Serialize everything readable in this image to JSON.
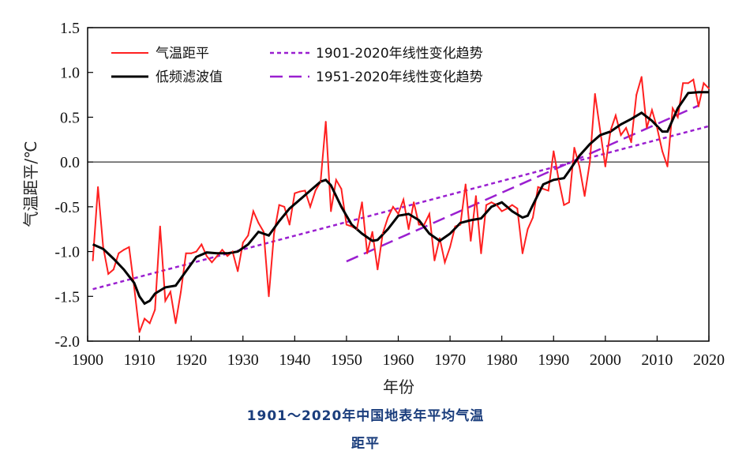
{
  "chart_data": {
    "type": "line",
    "xlabel": "年份",
    "ylabel": "气温距平/℃",
    "xlim": [
      1900,
      2020
    ],
    "ylim": [
      -2.0,
      1.5
    ],
    "xticks": [
      "1900",
      "1910",
      "1920",
      "1930",
      "1940",
      "1950",
      "1960",
      "1970",
      "1980",
      "1990",
      "2000",
      "2010",
      "2020"
    ],
    "yticks": [
      "1.5",
      "1.0",
      "0.5",
      "0.0",
      "-0.5",
      "-1.0",
      "-1.5",
      "-2.0"
    ],
    "legend": {
      "anomaly": "气温距平",
      "smooth": "低频滤波值",
      "trend1901": "1901-2020年线性变化趋势",
      "trend1951": "1951-2020年线性变化趋势"
    },
    "colors": {
      "anomaly": "#ff2020",
      "smooth": "#000000",
      "trend": "#9a1fd0"
    },
    "series": [
      {
        "name": "气温距平",
        "x": [
          1901,
          1902,
          1903,
          1904,
          1905,
          1906,
          1907,
          1908,
          1909,
          1910,
          1911,
          1912,
          1913,
          1914,
          1915,
          1916,
          1917,
          1918,
          1919,
          1920,
          1921,
          1922,
          1923,
          1924,
          1925,
          1926,
          1927,
          1928,
          1929,
          1930,
          1931,
          1932,
          1933,
          1934,
          1935,
          1936,
          1937,
          1938,
          1939,
          1940,
          1941,
          1942,
          1943,
          1944,
          1945,
          1946,
          1947,
          1948,
          1949,
          1950,
          1951,
          1952,
          1953,
          1954,
          1955,
          1956,
          1957,
          1958,
          1959,
          1960,
          1961,
          1962,
          1963,
          1964,
          1965,
          1966,
          1967,
          1968,
          1969,
          1970,
          1971,
          1972,
          1973,
          1974,
          1975,
          1976,
          1977,
          1978,
          1979,
          1980,
          1981,
          1982,
          1983,
          1984,
          1985,
          1986,
          1987,
          1988,
          1989,
          1990,
          1991,
          1992,
          1993,
          1994,
          1995,
          1996,
          1997,
          1998,
          1999,
          2000,
          2001,
          2002,
          2003,
          2004,
          2005,
          2006,
          2007,
          2008,
          2009,
          2010,
          2011,
          2012,
          2013,
          2014,
          2015,
          2016,
          2017,
          2018,
          2019,
          2020
        ],
        "values": [
          -1.1,
          -0.28,
          -0.95,
          -1.25,
          -1.2,
          -1.02,
          -0.98,
          -0.95,
          -1.4,
          -1.9,
          -1.75,
          -1.8,
          -1.65,
          -0.72,
          -1.55,
          -1.45,
          -1.8,
          -1.45,
          -1.02,
          -1.02,
          -1.0,
          -0.92,
          -1.05,
          -1.12,
          -1.05,
          -0.98,
          -1.05,
          -1.0,
          -1.22,
          -0.9,
          -0.82,
          -0.55,
          -0.68,
          -0.78,
          -1.5,
          -0.8,
          -0.48,
          -0.5,
          -0.7,
          -0.35,
          -0.33,
          -0.32,
          -0.5,
          -0.32,
          -0.22,
          0.45,
          -0.55,
          -0.2,
          -0.3,
          -0.7,
          -0.72,
          -0.75,
          -0.45,
          -1.02,
          -0.78,
          -1.2,
          -0.8,
          -0.62,
          -0.5,
          -0.58,
          -0.42,
          -0.75,
          -0.45,
          -0.7,
          -0.7,
          -0.58,
          -1.1,
          -0.85,
          -1.12,
          -0.95,
          -0.72,
          -0.7,
          -0.25,
          -0.88,
          -0.38,
          -1.02,
          -0.48,
          -0.45,
          -0.48,
          -0.55,
          -0.52,
          -0.48,
          -0.52,
          -1.02,
          -0.75,
          -0.62,
          -0.28,
          -0.3,
          -0.32,
          0.12,
          -0.2,
          -0.48,
          -0.45,
          0.16,
          -0.05,
          -0.38,
          0.0,
          0.76,
          0.35,
          -0.05,
          0.35,
          0.52,
          0.3,
          0.38,
          0.22,
          0.75,
          0.95,
          0.38,
          0.58,
          0.38,
          0.12,
          -0.05,
          0.6,
          0.5,
          0.88,
          0.88,
          0.92,
          0.62,
          0.88,
          0.82
        ]
      },
      {
        "name": "低频滤波值",
        "x": [
          1901,
          1903,
          1905,
          1907,
          1909,
          1910,
          1911,
          1912,
          1913,
          1915,
          1917,
          1919,
          1921,
          1923,
          1925,
          1927,
          1929,
          1931,
          1933,
          1935,
          1937,
          1939,
          1941,
          1943,
          1945,
          1946,
          1947,
          1949,
          1951,
          1953,
          1955,
          1956,
          1958,
          1960,
          1962,
          1964,
          1966,
          1968,
          1970,
          1972,
          1974,
          1976,
          1978,
          1980,
          1982,
          1984,
          1985,
          1986,
          1988,
          1990,
          1992,
          1993,
          1995,
          1997,
          1999,
          2001,
          2003,
          2005,
          2007,
          2009,
          2011,
          2012,
          2014,
          2016,
          2018,
          2020
        ],
        "values": [
          -0.92,
          -0.97,
          -1.08,
          -1.2,
          -1.35,
          -1.5,
          -1.58,
          -1.55,
          -1.47,
          -1.4,
          -1.38,
          -1.22,
          -1.06,
          -1.01,
          -1.02,
          -1.02,
          -1.0,
          -0.92,
          -0.78,
          -0.82,
          -0.66,
          -0.52,
          -0.42,
          -0.32,
          -0.22,
          -0.2,
          -0.26,
          -0.5,
          -0.7,
          -0.8,
          -0.88,
          -0.87,
          -0.75,
          -0.6,
          -0.58,
          -0.65,
          -0.8,
          -0.88,
          -0.8,
          -0.68,
          -0.65,
          -0.63,
          -0.5,
          -0.45,
          -0.55,
          -0.62,
          -0.6,
          -0.48,
          -0.25,
          -0.2,
          -0.18,
          -0.1,
          0.07,
          0.2,
          0.3,
          0.34,
          0.42,
          0.48,
          0.55,
          0.46,
          0.34,
          0.34,
          0.6,
          0.77,
          0.78,
          0.78
        ]
      }
    ],
    "trends": [
      {
        "name": "1901-2020年线性变化趋势",
        "x": [
          1901,
          2020
        ],
        "values": [
          -1.42,
          0.4
        ]
      },
      {
        "name": "1951-2020年线性变化趋势",
        "x": [
          1950,
          2018
        ],
        "values": [
          -1.11,
          0.63
        ]
      }
    ]
  },
  "caption": {
    "line1": "1901～2020年中国地表年平均气温",
    "line2": "距平"
  }
}
